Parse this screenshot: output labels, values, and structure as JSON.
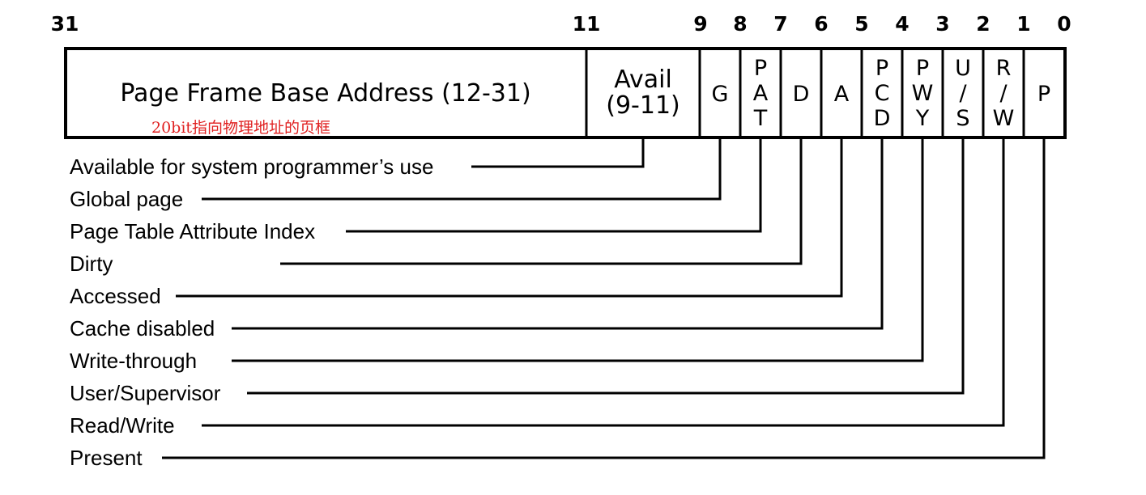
{
  "bit_numbers": [
    "31",
    "11",
    "9",
    "8",
    "7",
    "6",
    "5",
    "4",
    "3",
    "2",
    "1",
    "0"
  ],
  "fields": {
    "base_address": "Page Frame Base Address (12-31)",
    "base_note": "20bit指向物理地址的页框",
    "avail_line1": "Avail",
    "avail_line2": "(9-11)",
    "g": "G",
    "pat": [
      "P",
      "A",
      "T"
    ],
    "d": "D",
    "a": "A",
    "pcd": [
      "P",
      "C",
      "D"
    ],
    "pwt": [
      "P",
      "W",
      "Y"
    ],
    "us": [
      "U",
      "/",
      "S"
    ],
    "rw": [
      "R",
      "/",
      "W"
    ],
    "p": "P"
  },
  "descriptions": [
    "Available for system programmer’s use",
    "Global page",
    "Page Table Attribute Index",
    "Dirty",
    "Accessed",
    "Cache disabled",
    "Write-through",
    "User/Supervisor",
    "Read/Write",
    "Present"
  ]
}
